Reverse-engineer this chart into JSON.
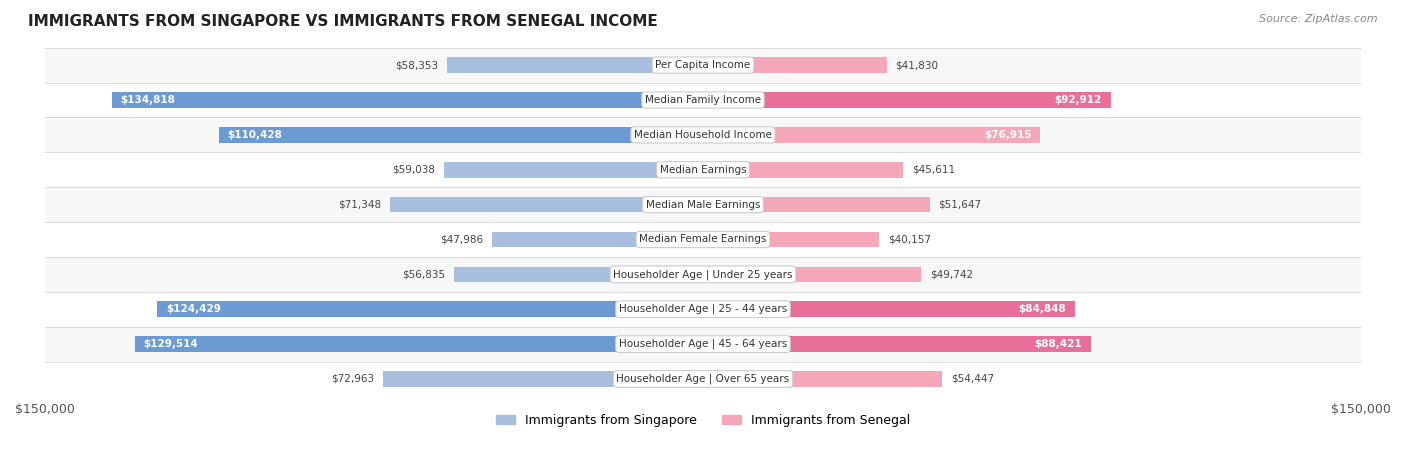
{
  "title": "IMMIGRANTS FROM SINGAPORE VS IMMIGRANTS FROM SENEGAL INCOME",
  "source": "Source: ZipAtlas.com",
  "categories": [
    "Per Capita Income",
    "Median Family Income",
    "Median Household Income",
    "Median Earnings",
    "Median Male Earnings",
    "Median Female Earnings",
    "Householder Age | Under 25 years",
    "Householder Age | 25 - 44 years",
    "Householder Age | 45 - 64 years",
    "Householder Age | Over 65 years"
  ],
  "singapore_values": [
    58353,
    134818,
    110428,
    59038,
    71348,
    47986,
    56835,
    124429,
    129514,
    72963
  ],
  "senegal_values": [
    41830,
    92912,
    76915,
    45611,
    51647,
    40157,
    49742,
    84848,
    88421,
    54447
  ],
  "singapore_labels": [
    "$58,353",
    "$134,818",
    "$110,428",
    "$59,038",
    "$71,348",
    "$47,986",
    "$56,835",
    "$124,429",
    "$129,514",
    "$72,963"
  ],
  "senegal_labels": [
    "$41,830",
    "$92,912",
    "$76,915",
    "$45,611",
    "$51,647",
    "$40,157",
    "$49,742",
    "$84,848",
    "$88,421",
    "$54,447"
  ],
  "singapore_color_light": "#a8bfdf",
  "singapore_color_strong": "#6b9bd2",
  "senegal_color_light": "#f4a7b9",
  "senegal_color_strong": "#e86f9a",
  "max_value": 150000,
  "background_color": "#ffffff",
  "row_bg_color": "#f0f0f0",
  "legend_singapore": "Immigrants from Singapore",
  "legend_senegal": "Immigrants from Senegal"
}
